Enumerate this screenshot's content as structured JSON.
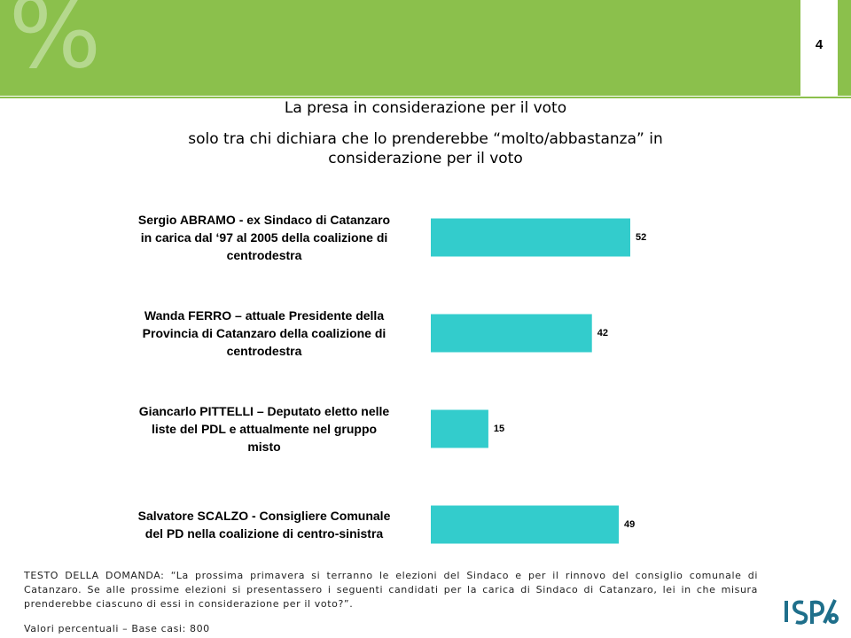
{
  "page_number": "4",
  "watermark": "%",
  "chart_data": {
    "type": "hbar",
    "title": "La presa in considerazione per il voto",
    "subtitle": "solo tra chi dichiara che lo prenderebbe “molto/abbastanza” in considerazione per il voto",
    "categories": [
      "Sergio ABRAMO - ex Sindaco di Catanzaro\nin carica dal ‘97 al 2005 della coalizione di\ncentrodestra",
      "Wanda FERRO – attuale Presidente della\nProvincia di Catanzaro della coalizione di\ncentrodestra",
      "Giancarlo PITTELLI – Deputato eletto nelle\nliste del PDL e attualmente nel gruppo\nmisto",
      "Salvatore SCALZO - Consigliere Comunale\ndel PD nella coalizione di centro-sinistra"
    ],
    "values": [
      52,
      42,
      15,
      49
    ],
    "color": "#33cccc"
  },
  "question_text": "TESTO DELLA DOMANDA: “La prossima primavera si terranno le elezioni del Sindaco e per il rinnovo del consiglio comunale di Catanzaro. Se alle prossime elezioni si presentassero i seguenti candidati per la carica di Sindaco di Catanzaro, lei in che misura prenderebbe ciascuno di essi in considerazione per il voto?”.",
  "base_note": "Valori percentuali – Base casi: 800"
}
